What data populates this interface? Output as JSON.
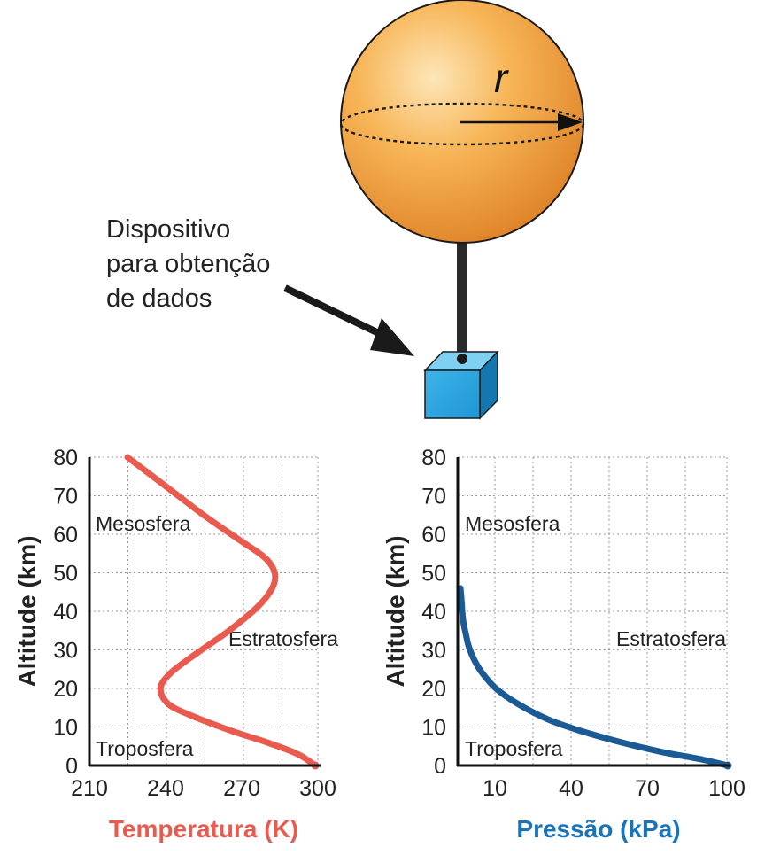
{
  "balloon": {
    "radius_label": "r",
    "color": "#f5a338",
    "cube_color": "#2ea7e0"
  },
  "device_label": [
    "Dispositivo",
    "para obtenção",
    "de dados"
  ],
  "chart_data": [
    {
      "type": "line",
      "xlabel": "Temperatura (K)",
      "ylabel": "Altitude (km)",
      "x_ticks": [
        "210",
        "240",
        "270",
        "300"
      ],
      "y_ticks": [
        "0",
        "10",
        "20",
        "30",
        "40",
        "50",
        "60",
        "70",
        "80"
      ],
      "xlim": [
        210,
        300
      ],
      "ylim": [
        0,
        80
      ],
      "grid": true,
      "color": "#e85b4e",
      "series": [
        {
          "x": [
            299,
            292,
            280,
            266,
            250,
            241,
            238,
            242,
            252,
            265,
            276,
            282,
            283,
            279,
            268,
            255,
            241,
            225
          ],
          "y": [
            0,
            3,
            6,
            9,
            13,
            16,
            20,
            24,
            29,
            35,
            41,
            46,
            50,
            54,
            59,
            65,
            72,
            80
          ]
        }
      ],
      "annotations": [
        "Mesosfera",
        "Estratosfera",
        "Troposfera"
      ]
    },
    {
      "type": "line",
      "xlabel": "Pressão (kPa)",
      "ylabel": "Altitude (km)",
      "x_ticks": [
        "10",
        "40",
        "70",
        "100"
      ],
      "y_ticks": [
        "0",
        "10",
        "20",
        "30",
        "40",
        "50",
        "60",
        "70",
        "80"
      ],
      "xlim": [
        0,
        100
      ],
      "ylim": [
        0,
        80
      ],
      "grid": true,
      "color": "#1b5a94",
      "series": [
        {
          "x": [
            99,
            90,
            75,
            60,
            45,
            33,
            22,
            14,
            9,
            6,
            4,
            3,
            2,
            1.6,
            1.3,
            1
          ],
          "y": [
            0,
            1.5,
            3.5,
            6,
            9,
            12,
            16,
            20,
            24,
            27.5,
            31,
            34,
            37.5,
            40.5,
            43.5,
            46
          ]
        }
      ],
      "annotations": [
        "Mesosfera",
        "Estratosfera",
        "Troposfera"
      ]
    }
  ]
}
